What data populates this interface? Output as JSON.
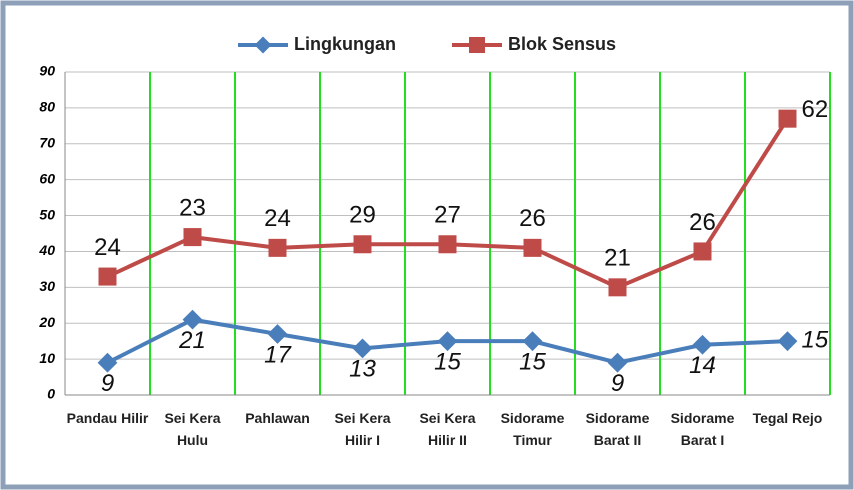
{
  "chart_data": {
    "type": "line",
    "stacked": true,
    "categories": [
      "Pandau Hilir",
      "Sei Kera Hulu",
      "Pahlawan",
      "Sei Kera Hilir I",
      "Sei Kera Hilir II",
      "Sidorame Timur",
      "Sidorame Barat II",
      "Sidorame Barat I",
      "Tegal Rejo"
    ],
    "series": [
      {
        "name": "Lingkungan",
        "color": "#4a7ebb",
        "values": [
          9,
          21,
          17,
          13,
          15,
          15,
          9,
          14,
          15
        ]
      },
      {
        "name": "Blok Sensus",
        "color": "#be4b48",
        "values": [
          24,
          23,
          24,
          29,
          27,
          26,
          21,
          26,
          62
        ]
      }
    ],
    "ylim": [
      0,
      90
    ],
    "yticks": [
      0,
      10,
      20,
      30,
      40,
      50,
      60,
      70,
      80,
      90
    ],
    "grid": true,
    "legend": "top"
  }
}
